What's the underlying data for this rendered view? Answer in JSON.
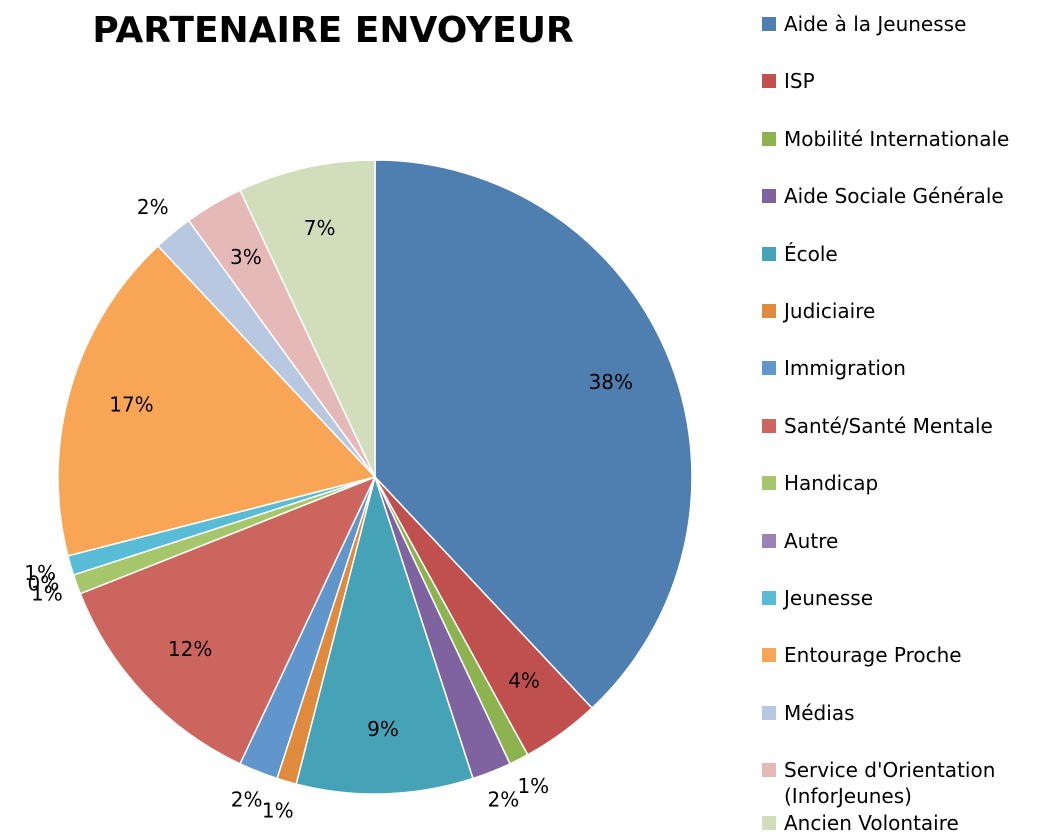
{
  "chart_data": {
    "type": "pie",
    "title": "PARTENAIRE ENVOYEUR",
    "categories": [
      "Aide à la Jeunesse",
      "ISP",
      "Mobilité Internationale",
      "Aide Sociale Générale",
      "École",
      "Judiciaire",
      "Immigration",
      "Santé/Santé Mentale",
      "Handicap",
      "Autre",
      "Jeunesse",
      "Entourage Proche",
      "Médias",
      "Service d'Orientation (InforJeunes)",
      "Ancien Volontaire"
    ],
    "values": [
      38,
      4,
      1,
      2,
      9,
      1,
      2,
      12,
      1,
      0,
      1,
      17,
      2,
      3,
      7
    ],
    "value_labels": [
      "38%",
      "4%",
      "1%",
      "2%",
      "9%",
      "1%",
      "2%",
      "12%",
      "1%",
      "0%",
      "1%",
      "17%",
      "2%",
      "3%",
      "7%"
    ],
    "colors": [
      "#4f7eb0",
      "#c0504d",
      "#8db350",
      "#7f63a1",
      "#46a2b7",
      "#e08a3e",
      "#6096cc",
      "#cd655f",
      "#a5c66b",
      "#9a82b8",
      "#58bcd6",
      "#f8a656",
      "#b8c8e1",
      "#e5b9b8",
      "#d1ddbb"
    ],
    "legend": "right"
  }
}
